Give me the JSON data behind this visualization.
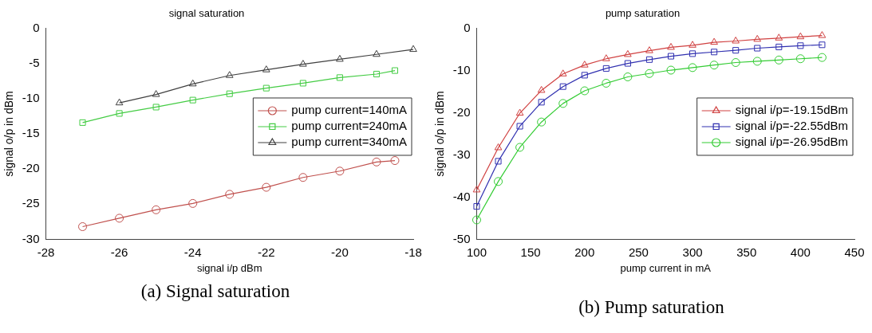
{
  "chart_data": [
    {
      "type": "line",
      "title": "signal saturation",
      "xlabel": "signal i/p dBm",
      "ylabel": "signal o/p in dBm",
      "xlim": [
        -28,
        -18
      ],
      "xticks": [
        -28,
        -26,
        -24,
        -22,
        -20,
        -18
      ],
      "ylim": [
        -30,
        0
      ],
      "yticks": [
        -30,
        -25,
        -20,
        -15,
        -10,
        -5,
        0
      ],
      "legend": "right",
      "grid": false,
      "annotations": [
        "(a) Signal saturation"
      ],
      "series": [
        {
          "name": "pump current=140mA",
          "color": "#c0504d",
          "marker": "circle",
          "x": [
            -27,
            -26,
            -25,
            -24,
            -23,
            -22,
            -21,
            -20,
            -19,
            -18.5
          ],
          "values": [
            -28.2,
            -27,
            -25.8,
            -24.9,
            -23.6,
            -22.6,
            -21.2,
            -20.3,
            -19,
            -18.8
          ]
        },
        {
          "name": "pump current=240mA",
          "color": "#44cc44",
          "marker": "square",
          "x": [
            -27,
            -26,
            -25,
            -24,
            -23,
            -22,
            -21,
            -20,
            -19,
            -18.5
          ],
          "values": [
            -13.4,
            -12.1,
            -11.2,
            -10.2,
            -9.3,
            -8.5,
            -7.8,
            -7,
            -6.5,
            -6
          ]
        },
        {
          "name": "pump current=340mA",
          "color": "#404040",
          "marker": "triangle",
          "x": [
            -26,
            -25,
            -24,
            -23,
            -22,
            -21,
            -20,
            -19,
            -18
          ],
          "values": [
            -10.6,
            -9.4,
            -7.9,
            -6.7,
            -5.9,
            -5.1,
            -4.4,
            -3.7,
            -3
          ]
        }
      ]
    },
    {
      "type": "line",
      "title": "pump saturation",
      "xlabel": "pump current in mA",
      "ylabel": "signal o/p in dBm",
      "xlim": [
        100,
        450
      ],
      "xticks": [
        100,
        150,
        200,
        250,
        300,
        350,
        400,
        450
      ],
      "ylim": [
        -50,
        0
      ],
      "yticks": [
        -50,
        -40,
        -30,
        -20,
        -10,
        0
      ],
      "legend": "right",
      "grid": false,
      "annotations": [
        "(b) Pump saturation"
      ],
      "series": [
        {
          "name": "signal i/p=-19.15dBm",
          "color": "#d04040",
          "marker": "triangle",
          "x": [
            100,
            120,
            140,
            160,
            180,
            200,
            220,
            240,
            260,
            280,
            300,
            320,
            340,
            360,
            380,
            400,
            420
          ],
          "values": [
            -38.3,
            -28.3,
            -20.1,
            -14.7,
            -10.8,
            -8.7,
            -7.2,
            -6.2,
            -5.3,
            -4.5,
            -4,
            -3.3,
            -3,
            -2.6,
            -2.3,
            -2,
            -1.7
          ]
        },
        {
          "name": "signal i/p=-22.55dBm",
          "color": "#3030b0",
          "marker": "square",
          "x": [
            100,
            120,
            140,
            160,
            180,
            200,
            220,
            240,
            260,
            280,
            300,
            320,
            340,
            360,
            380,
            400,
            420
          ],
          "values": [
            -42.2,
            -31.5,
            -23.2,
            -17.5,
            -13.8,
            -11.1,
            -9.5,
            -8.3,
            -7.4,
            -6.6,
            -6,
            -5.6,
            -5.2,
            -4.7,
            -4.4,
            -4.1,
            -3.9
          ]
        },
        {
          "name": "signal i/p=-26.95dBm",
          "color": "#33cc33",
          "marker": "circle",
          "x": [
            100,
            120,
            140,
            160,
            180,
            200,
            220,
            240,
            260,
            280,
            300,
            320,
            340,
            360,
            380,
            400,
            420
          ],
          "values": [
            -45.4,
            -36.3,
            -28.2,
            -22.2,
            -17.8,
            -14.8,
            -13,
            -11.5,
            -10.7,
            -9.9,
            -9.3,
            -8.7,
            -8.1,
            -7.8,
            -7.5,
            -7.2,
            -6.9
          ]
        }
      ]
    }
  ]
}
